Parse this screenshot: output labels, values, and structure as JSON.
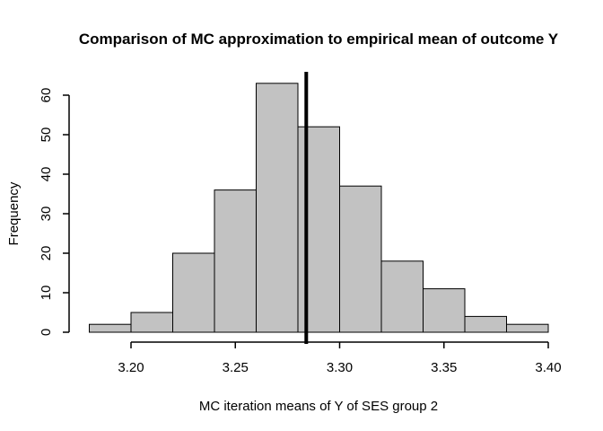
{
  "title": "Comparison of MC approximation to empirical mean of outcome Y",
  "chart_data": {
    "type": "bar",
    "subtype": "histogram",
    "title": "Comparison of MC approximation to empirical mean of outcome Y",
    "xlabel": "MC iteration means of Y of SES group 2",
    "ylabel": "Frequency",
    "bin_start": 3.18,
    "bin_width": 0.02,
    "bin_edges": [
      3.18,
      3.2,
      3.22,
      3.24,
      3.26,
      3.28,
      3.3,
      3.32,
      3.34,
      3.36,
      3.38,
      3.4
    ],
    "counts": [
      2,
      5,
      20,
      36,
      63,
      52,
      37,
      18,
      11,
      4,
      2
    ],
    "x_ticks": [
      {
        "value": 3.2,
        "label": "3.20"
      },
      {
        "value": 3.25,
        "label": "3.25"
      },
      {
        "value": 3.3,
        "label": "3.30"
      },
      {
        "value": 3.35,
        "label": "3.35"
      },
      {
        "value": 3.4,
        "label": "3.40"
      }
    ],
    "y_ticks": [
      {
        "value": 0,
        "label": "0"
      },
      {
        "value": 10,
        "label": "10"
      },
      {
        "value": 20,
        "label": "20"
      },
      {
        "value": 30,
        "label": "30"
      },
      {
        "value": 40,
        "label": "40"
      },
      {
        "value": 50,
        "label": "50"
      },
      {
        "value": 60,
        "label": "60"
      }
    ],
    "xlim": [
      3.18,
      3.4
    ],
    "ylim": [
      0,
      63
    ],
    "grid": false,
    "legend": "none",
    "reference_line_x": 3.284,
    "colors": {
      "bar_fill": "#C2C2C2",
      "bar_border": "#000000",
      "axis": "#000000",
      "reference_line": "#000000",
      "background": "#FFFFFF"
    }
  }
}
